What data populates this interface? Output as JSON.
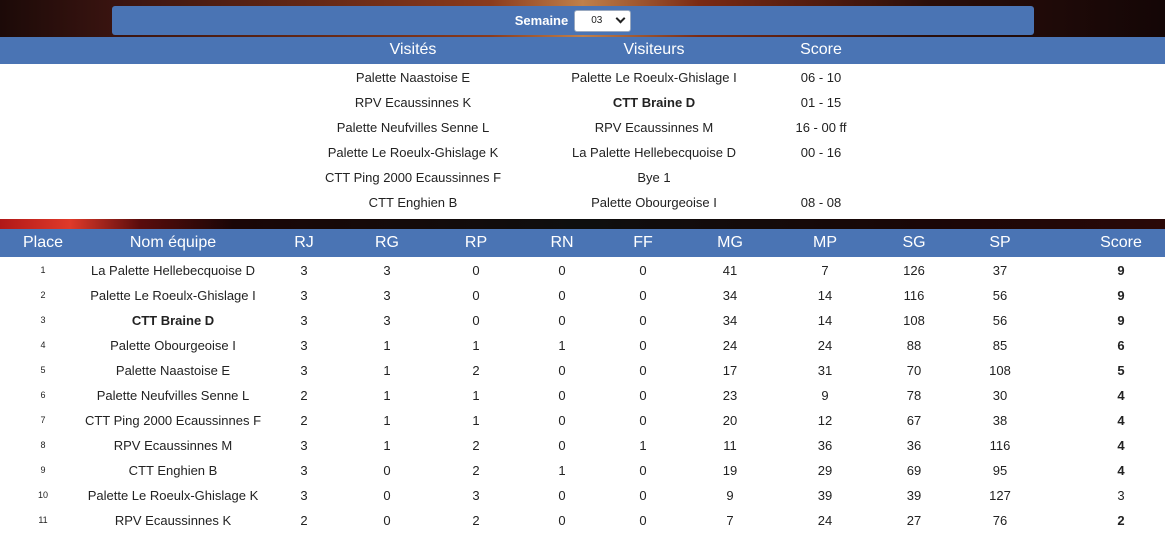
{
  "week_selector": {
    "label": "Semaine",
    "selected": "03"
  },
  "matches": {
    "headers": {
      "home": "Visités",
      "away": "Visiteurs",
      "score": "Score"
    },
    "rows": [
      {
        "home": "Palette Naastoise E",
        "away": "Palette Le Roeulx-Ghislage I",
        "score": "06 - 10",
        "highlight": ""
      },
      {
        "home": "RPV Ecaussinnes K",
        "away": "CTT Braine D",
        "score": "01 - 15",
        "highlight": "away"
      },
      {
        "home": "Palette Neufvilles Senne L",
        "away": "RPV Ecaussinnes M",
        "score": "16 - 00 ff",
        "highlight": ""
      },
      {
        "home": "Palette Le Roeulx-Ghislage K",
        "away": "La Palette Hellebecquoise D",
        "score": "00 - 16",
        "highlight": ""
      },
      {
        "home": "CTT Ping 2000 Ecaussinnes F",
        "away": "Bye 1",
        "score": "",
        "highlight": ""
      },
      {
        "home": "CTT Enghien B",
        "away": "Palette Obourgeoise I",
        "score": "08 - 08",
        "highlight": ""
      }
    ]
  },
  "ranking": {
    "headers": {
      "place": "Place",
      "team": "Nom équipe",
      "rj": "RJ",
      "rg": "RG",
      "rp": "RP",
      "rn": "RN",
      "ff": "FF",
      "mg": "MG",
      "mp": "MP",
      "sg": "SG",
      "sp": "SP",
      "score": "Score"
    },
    "rows": [
      {
        "place": "1",
        "team": "La Palette Hellebecquoise D",
        "rj": "3",
        "rg": "3",
        "rp": "0",
        "rn": "0",
        "ff": "0",
        "mg": "41",
        "mp": "7",
        "sg": "126",
        "sp": "37",
        "score": "9",
        "team_bold": false,
        "score_bold": true
      },
      {
        "place": "2",
        "team": "Palette Le Roeulx-Ghislage I",
        "rj": "3",
        "rg": "3",
        "rp": "0",
        "rn": "0",
        "ff": "0",
        "mg": "34",
        "mp": "14",
        "sg": "116",
        "sp": "56",
        "score": "9",
        "team_bold": false,
        "score_bold": true
      },
      {
        "place": "3",
        "team": "CTT Braine D",
        "rj": "3",
        "rg": "3",
        "rp": "0",
        "rn": "0",
        "ff": "0",
        "mg": "34",
        "mp": "14",
        "sg": "108",
        "sp": "56",
        "score": "9",
        "team_bold": true,
        "score_bold": true
      },
      {
        "place": "4",
        "team": "Palette Obourgeoise I",
        "rj": "3",
        "rg": "1",
        "rp": "1",
        "rn": "1",
        "ff": "0",
        "mg": "24",
        "mp": "24",
        "sg": "88",
        "sp": "85",
        "score": "6",
        "team_bold": false,
        "score_bold": true
      },
      {
        "place": "5",
        "team": "Palette Naastoise E",
        "rj": "3",
        "rg": "1",
        "rp": "2",
        "rn": "0",
        "ff": "0",
        "mg": "17",
        "mp": "31",
        "sg": "70",
        "sp": "108",
        "score": "5",
        "team_bold": false,
        "score_bold": true
      },
      {
        "place": "6",
        "team": "Palette Neufvilles Senne L",
        "rj": "2",
        "rg": "1",
        "rp": "1",
        "rn": "0",
        "ff": "0",
        "mg": "23",
        "mp": "9",
        "sg": "78",
        "sp": "30",
        "score": "4",
        "team_bold": false,
        "score_bold": true
      },
      {
        "place": "7",
        "team": "CTT Ping 2000 Ecaussinnes F",
        "rj": "2",
        "rg": "1",
        "rp": "1",
        "rn": "0",
        "ff": "0",
        "mg": "20",
        "mp": "12",
        "sg": "67",
        "sp": "38",
        "score": "4",
        "team_bold": false,
        "score_bold": true
      },
      {
        "place": "8",
        "team": "RPV Ecaussinnes M",
        "rj": "3",
        "rg": "1",
        "rp": "2",
        "rn": "0",
        "ff": "1",
        "mg": "11",
        "mp": "36",
        "sg": "36",
        "sp": "116",
        "score": "4",
        "team_bold": false,
        "score_bold": true
      },
      {
        "place": "9",
        "team": "CTT Enghien B",
        "rj": "3",
        "rg": "0",
        "rp": "2",
        "rn": "1",
        "ff": "0",
        "mg": "19",
        "mp": "29",
        "sg": "69",
        "sp": "95",
        "score": "4",
        "team_bold": false,
        "score_bold": true
      },
      {
        "place": "10",
        "team": "Palette Le Roeulx-Ghislage K",
        "rj": "3",
        "rg": "0",
        "rp": "3",
        "rn": "0",
        "ff": "0",
        "mg": "9",
        "mp": "39",
        "sg": "39",
        "sp": "127",
        "score": "3",
        "team_bold": false,
        "score_bold": false
      },
      {
        "place": "11",
        "team": "RPV Ecaussinnes K",
        "rj": "2",
        "rg": "0",
        "rp": "2",
        "rn": "0",
        "ff": "0",
        "mg": "7",
        "mp": "24",
        "sg": "27",
        "sp": "76",
        "score": "2",
        "team_bold": false,
        "score_bold": true
      }
    ]
  }
}
